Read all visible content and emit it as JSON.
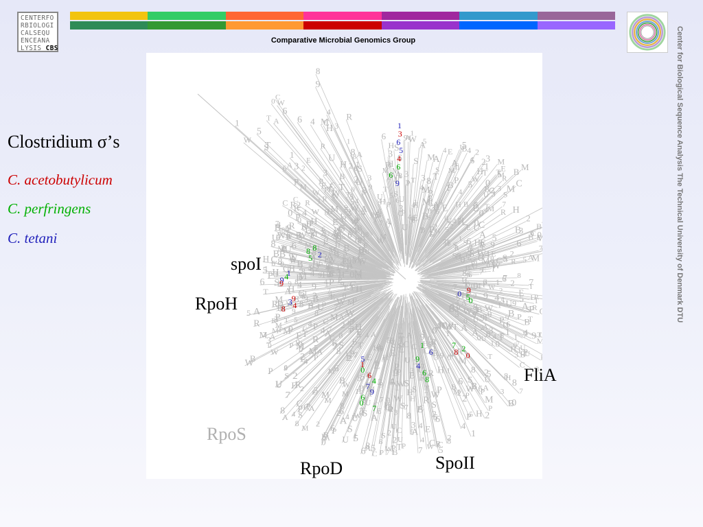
{
  "header": {
    "logo_lines": [
      "CENTERFO",
      "RBIOLOGI",
      "CALSEQU",
      "ENCEANA",
      "LYSIS"
    ],
    "logo_cbs": "CBS",
    "group_name": "Comparative Microbial Genomics Group",
    "bar_colors_top": [
      "#f2c40f",
      "#33cc66",
      "#ff6633",
      "#ff3399",
      "#a0289e",
      "#3399cc",
      "#996699"
    ],
    "bar_colors_bottom": [
      "#2e8b57",
      "#339933",
      "#ff9933",
      "#cc0000",
      "#9933cc",
      "#0066ff",
      "#9966ff"
    ]
  },
  "sidebar": {
    "text": "Center for Biological Sequence Analysis    The Technical University of Denmark    DTU"
  },
  "legend": {
    "title": "Clostridium σ’s",
    "species": [
      {
        "name": "C. acetobutylicum",
        "color": "#cc0000"
      },
      {
        "name": "C. perfringens",
        "color": "#00b000"
      },
      {
        "name": "C. tetani",
        "color": "#2222bb"
      }
    ]
  },
  "clade_labels": {
    "spoI": "spoI",
    "rpoH": "RpoH",
    "fliA": "FliA",
    "rpoS": "RpoS",
    "rpoD": "RpoD",
    "spoII": "SpoII"
  }
}
